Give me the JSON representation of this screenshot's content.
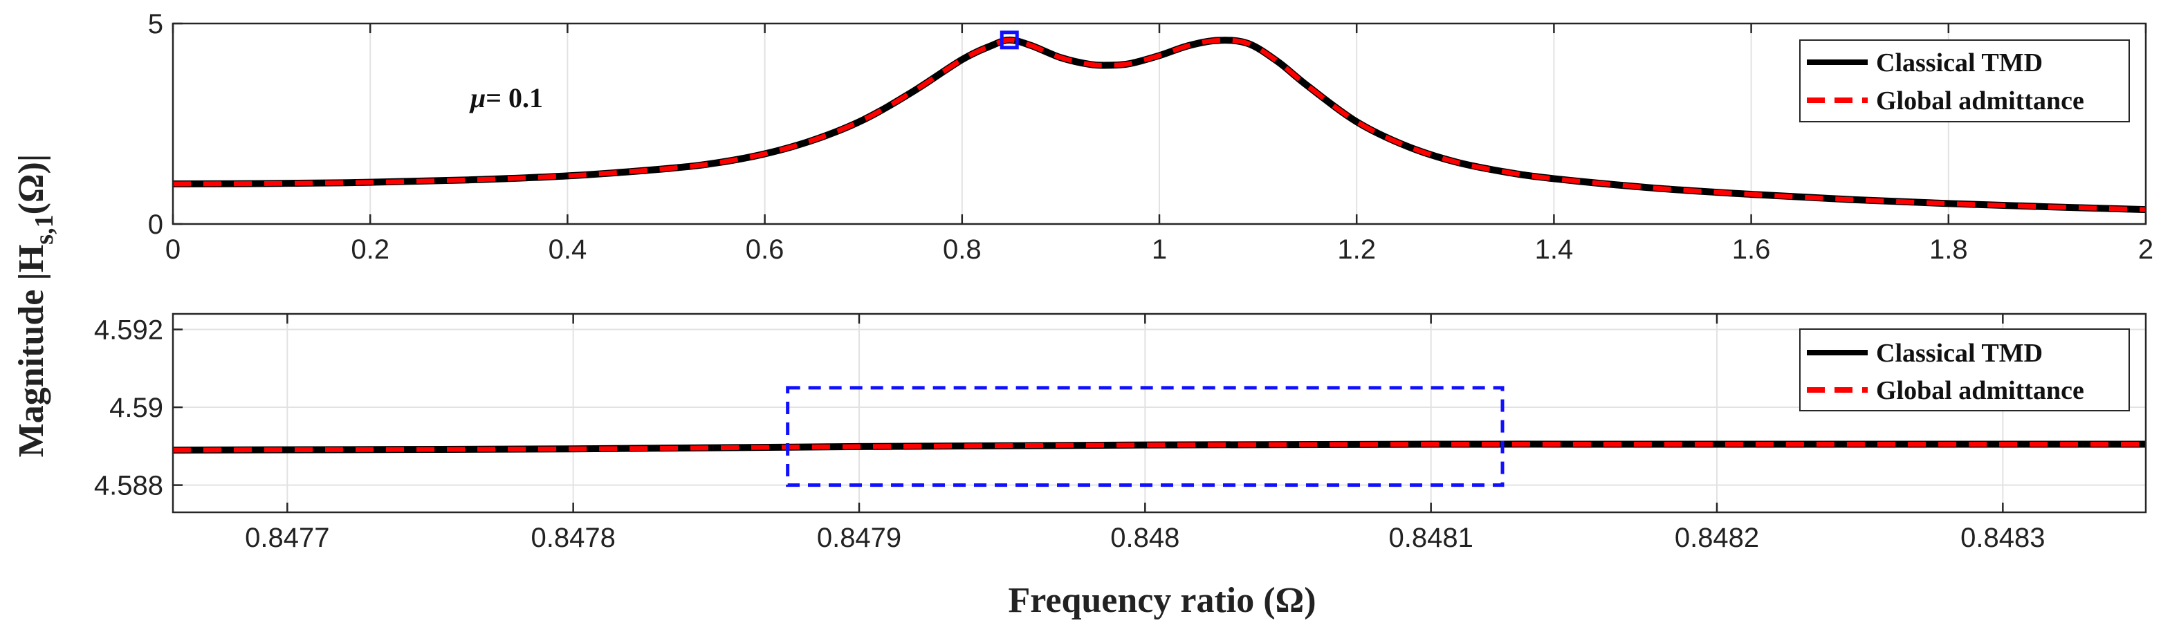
{
  "figure": {
    "ylabel_main": "Magnitude |H",
    "ylabel_sub": "s,1",
    "ylabel_tail": "(Ω)|",
    "xlabel": "Frequency ratio (Ω)"
  },
  "chart_data": [
    {
      "id": "top",
      "type": "line",
      "xlim": [
        0,
        2
      ],
      "ylim": [
        0,
        5
      ],
      "xticks": [
        0,
        0.2,
        0.4,
        0.6,
        0.8,
        1,
        1.2,
        1.4,
        1.6,
        1.8,
        2
      ],
      "xtick_labels": [
        "0",
        "0.2",
        "0.4",
        "0.6",
        "0.8",
        "1",
        "1.2",
        "1.4",
        "1.6",
        "1.8",
        "2"
      ],
      "yticks": [
        0,
        5
      ],
      "ytick_labels": [
        "0",
        "5"
      ],
      "grid": true,
      "annotation": {
        "symbol": "μ",
        "text": "= 0.1"
      },
      "marker": {
        "shape": "square",
        "x": 0.848,
        "y": 4.589,
        "color": "#1010ff"
      },
      "legend": {
        "position": "top-right",
        "entries": [
          "Classical TMD",
          "Global admittance"
        ]
      },
      "series": [
        {
          "name": "Classical TMD",
          "color": "#000000",
          "style": "solid",
          "x": [
            0,
            0.1,
            0.2,
            0.3,
            0.4,
            0.5,
            0.55,
            0.6,
            0.65,
            0.7,
            0.75,
            0.8,
            0.83,
            0.848,
            0.87,
            0.9,
            0.93,
            0.95,
            0.97,
            1.0,
            1.03,
            1.06,
            1.09,
            1.12,
            1.15,
            1.2,
            1.25,
            1.3,
            1.35,
            1.4,
            1.5,
            1.6,
            1.7,
            1.8,
            1.9,
            2.0
          ],
          "y": [
            1.0,
            1.01,
            1.04,
            1.1,
            1.2,
            1.38,
            1.52,
            1.75,
            2.1,
            2.6,
            3.3,
            4.1,
            4.45,
            4.589,
            4.45,
            4.15,
            3.98,
            3.96,
            4.0,
            4.2,
            4.45,
            4.58,
            4.5,
            4.05,
            3.45,
            2.55,
            1.95,
            1.55,
            1.3,
            1.13,
            0.9,
            0.74,
            0.61,
            0.51,
            0.43,
            0.36
          ]
        },
        {
          "name": "Global admittance",
          "color": "#ff0000",
          "style": "dashed",
          "x": [
            0,
            0.1,
            0.2,
            0.3,
            0.4,
            0.5,
            0.55,
            0.6,
            0.65,
            0.7,
            0.75,
            0.8,
            0.83,
            0.848,
            0.87,
            0.9,
            0.93,
            0.95,
            0.97,
            1.0,
            1.03,
            1.06,
            1.09,
            1.12,
            1.15,
            1.2,
            1.25,
            1.3,
            1.35,
            1.4,
            1.5,
            1.6,
            1.7,
            1.8,
            1.9,
            2.0
          ],
          "y": [
            1.0,
            1.01,
            1.04,
            1.1,
            1.2,
            1.38,
            1.52,
            1.75,
            2.1,
            2.6,
            3.3,
            4.1,
            4.45,
            4.589,
            4.45,
            4.15,
            3.98,
            3.96,
            4.0,
            4.2,
            4.45,
            4.58,
            4.5,
            4.05,
            3.45,
            2.55,
            1.95,
            1.55,
            1.3,
            1.13,
            0.9,
            0.74,
            0.61,
            0.51,
            0.43,
            0.36
          ]
        }
      ]
    },
    {
      "id": "bottom",
      "type": "line",
      "xlim": [
        0.84766,
        0.84835
      ],
      "ylim": [
        4.5873,
        4.5924
      ],
      "xticks": [
        0.8477,
        0.8478,
        0.8479,
        0.848,
        0.8481,
        0.8482,
        0.8483
      ],
      "xtick_labels": [
        "0.8477",
        "0.8478",
        "0.8479",
        "0.848",
        "0.8481",
        "0.8482",
        "0.8483"
      ],
      "yticks": [
        4.588,
        4.59,
        4.592
      ],
      "ytick_labels": [
        "4.588",
        "4.59",
        "4.592"
      ],
      "grid": true,
      "highlight_box": {
        "x0": 0.847875,
        "x1": 0.848125,
        "y0": 4.588,
        "y1": 4.5905,
        "color": "#1010ff",
        "style": "dashed"
      },
      "legend": {
        "position": "top-right",
        "entries": [
          "Classical TMD",
          "Global admittance"
        ]
      },
      "series": [
        {
          "name": "Classical TMD",
          "color": "#000000",
          "style": "solid",
          "x": [
            0.84766,
            0.8478,
            0.8479,
            0.848,
            0.8481,
            0.8482,
            0.84835
          ],
          "y": [
            4.5889,
            4.58893,
            4.58899,
            4.58903,
            4.58905,
            4.58905,
            4.58905
          ]
        },
        {
          "name": "Global admittance",
          "color": "#ff0000",
          "style": "dashed",
          "x": [
            0.84766,
            0.8478,
            0.8479,
            0.848,
            0.8481,
            0.8482,
            0.84835
          ],
          "y": [
            4.5889,
            4.58893,
            4.58899,
            4.58903,
            4.58905,
            4.58905,
            4.58905
          ]
        }
      ]
    }
  ]
}
